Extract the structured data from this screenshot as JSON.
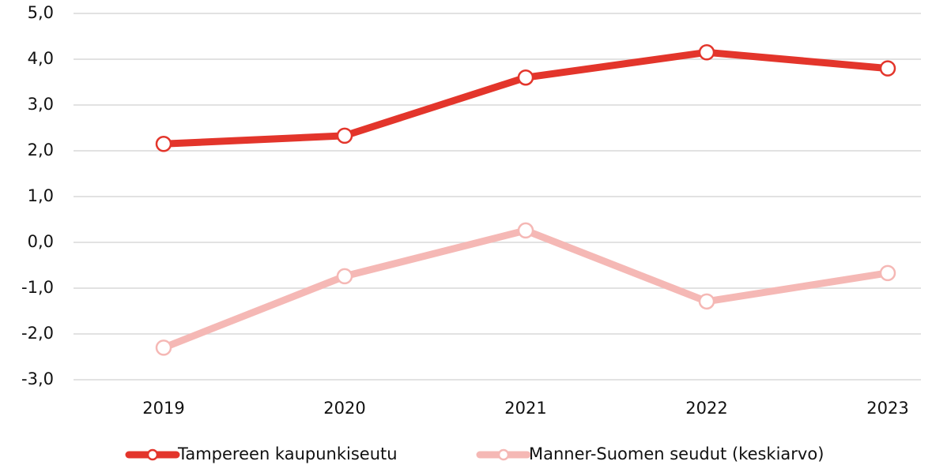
{
  "chart_data": {
    "type": "line",
    "categories": [
      "2019",
      "2020",
      "2021",
      "2022",
      "2023"
    ],
    "series": [
      {
        "name": "Tampereen kaupunkiseutu",
        "color": "#e3352b",
        "values": [
          2.15,
          2.33,
          3.6,
          4.15,
          3.8
        ]
      },
      {
        "name": "Manner-Suomen seudut (keskiarvo)",
        "color": "#f5b8b5",
        "values": [
          -2.3,
          -0.74,
          0.26,
          -1.29,
          -0.67
        ]
      }
    ],
    "ylim": [
      -3,
      5
    ],
    "yticks": [
      {
        "value": 5,
        "label": "5,0"
      },
      {
        "value": 4,
        "label": "4,0"
      },
      {
        "value": 3,
        "label": "3,0"
      },
      {
        "value": 2,
        "label": "2,0"
      },
      {
        "value": 1,
        "label": "1,0"
      },
      {
        "value": 0,
        "label": "0,0"
      },
      {
        "value": -1,
        "label": "-1,0"
      },
      {
        "value": -2,
        "label": "-2,0"
      },
      {
        "value": -3,
        "label": "-3,0"
      }
    ],
    "grid": true
  }
}
